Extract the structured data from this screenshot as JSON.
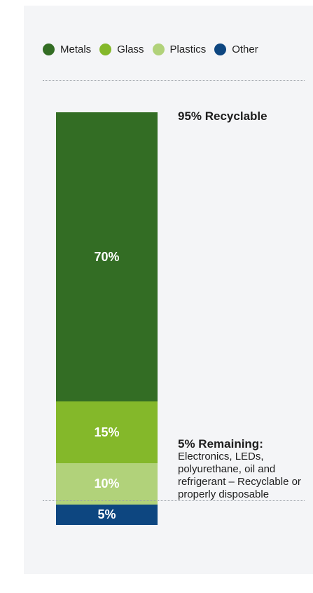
{
  "chart_data": {
    "type": "bar",
    "stacked": true,
    "categories": [
      "Metals",
      "Glass",
      "Plastics",
      "Other"
    ],
    "series": [
      {
        "name": "Metals",
        "value": 70,
        "label": "70%",
        "color": "#336d24"
      },
      {
        "name": "Glass",
        "value": 15,
        "label": "15%",
        "color": "#84b82a"
      },
      {
        "name": "Plastics",
        "value": 10,
        "label": "10%",
        "color": "#b1d27a"
      },
      {
        "name": "Other",
        "value": 5,
        "label": "5%",
        "color": "#0d4680"
      }
    ],
    "annotations": {
      "recyclable": "95% Recyclable",
      "remaining_title": "5% Remaining:",
      "remaining_body": "Electronics, LEDs, polyurethane, oil and refrigerant – Recyclable or properly disposable"
    },
    "legend_position": "top",
    "ylim": [
      0,
      100
    ]
  }
}
